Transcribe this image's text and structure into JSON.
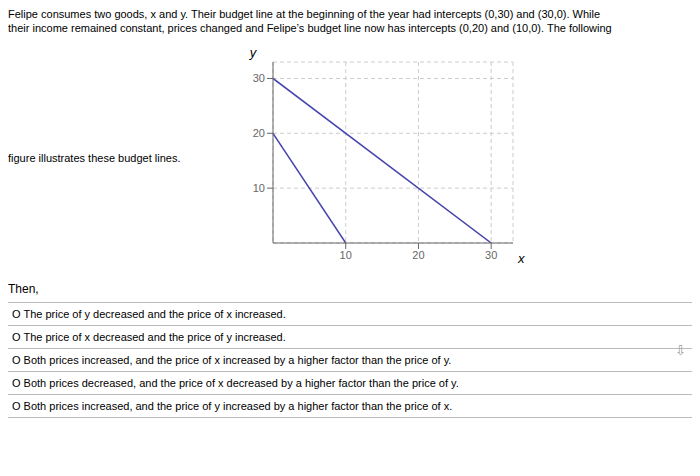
{
  "chart_data": {
    "type": "line",
    "title": "Felipe consumes two goods, x and y. Their budget line at the beginning of the year had intercepts (0,30) and (30,0). While",
    "subtitle": "their income remained constant, prices changed and Felipe’s budget line now has intercepts (0,20) and (10,0). The following",
    "annotations": [
      "figure illustrates these budget lines.",
      "Then,",
      "O  The price of y decreased and the price of x increased.",
      "O  The price of x decreased and the price of y increased.",
      "O  Both prices increased, and the price of x increased by a higher factor than the price of y.",
      "O  Both prices decreased, and the price of x decreased by a higher factor than the price of y.",
      "O  Both prices increased, and the price of y increased by a higher factor than the price of x.",
      "⇩"
    ],
    "x_label": "x",
    "y_label": "y",
    "series": [
      {
        "color": "#4444aa",
        "x": [
          0,
          30
        ],
        "values": [
          30,
          0
        ]
      },
      {
        "color": "#4444aa",
        "x": [
          0,
          10
        ],
        "values": [
          20,
          0
        ]
      }
    ],
    "xlim": [
      0,
      33
    ],
    "ylim": [
      0,
      33
    ],
    "xticks": [
      10,
      20,
      30
    ],
    "yticks": [
      10,
      20,
      30
    ],
    "grid": true
  }
}
